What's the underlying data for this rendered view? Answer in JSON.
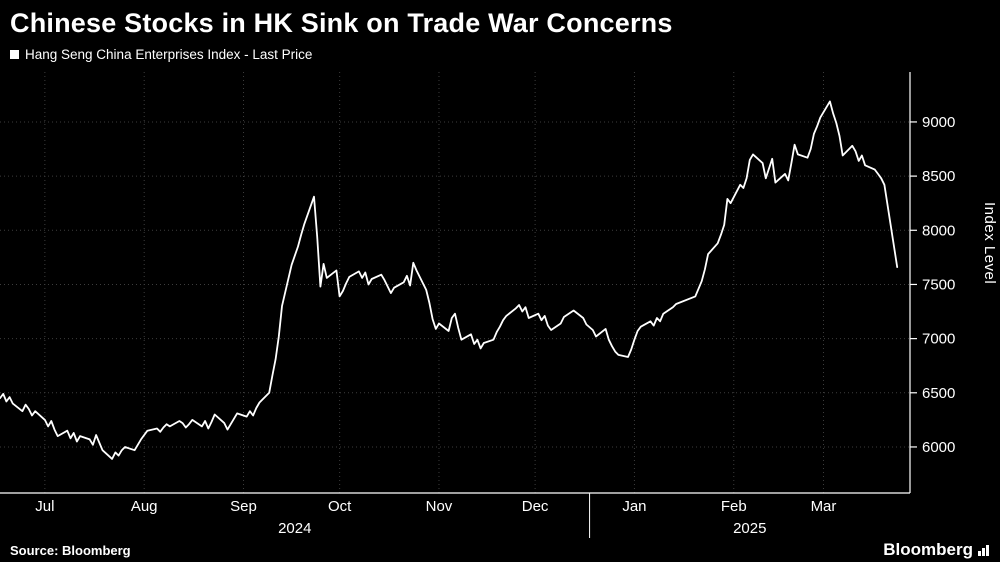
{
  "title": "Chinese Stocks in HK Sink on Trade War Concerns",
  "legend": {
    "label": "Hang Seng China Enterprises Index - Last Price",
    "swatch_color": "#ffffff"
  },
  "y_axis_label": "Index Level",
  "footer": {
    "source": "Source: Bloomberg",
    "brand": "Bloomberg"
  },
  "colors": {
    "background": "#000000",
    "line": "#ffffff",
    "grid": "#3d3d3d",
    "axis": "#ffffff",
    "text": "#ffffff"
  },
  "chart_data": {
    "type": "line",
    "title": "Chinese Stocks in HK Sink on Trade War Concerns",
    "series_name": "Hang Seng China Enterprises Index - Last Price",
    "xlabel": "",
    "ylabel": "Index Level",
    "x_domain": [
      "2024-07-01",
      "2025-04-11"
    ],
    "ylim": [
      5575,
      9461
    ],
    "yticks": [
      6000,
      6500,
      7000,
      7500,
      8000,
      8500,
      9000
    ],
    "grid": "dotted",
    "legend_position": "top-left",
    "month_ticks": [
      {
        "date": "2024-07-15",
        "label": "Jul"
      },
      {
        "date": "2024-08-15",
        "label": "Aug"
      },
      {
        "date": "2024-09-15",
        "label": "Sep"
      },
      {
        "date": "2024-10-15",
        "label": "Oct"
      },
      {
        "date": "2024-11-15",
        "label": "Nov"
      },
      {
        "date": "2024-12-15",
        "label": "Dec"
      },
      {
        "date": "2025-01-15",
        "label": "Jan"
      },
      {
        "date": "2025-02-15",
        "label": "Feb"
      },
      {
        "date": "2025-03-15",
        "label": "Mar"
      }
    ],
    "year_labels": [
      {
        "label": "2024",
        "start": "2024-07-01",
        "end": "2025-01-01"
      },
      {
        "label": "2025",
        "start": "2025-01-01",
        "end": "2025-04-11"
      }
    ],
    "year_separators": [
      "2025-01-01"
    ],
    "points": [
      [
        "2024-07-01",
        6450
      ],
      [
        "2024-07-02",
        6490
      ],
      [
        "2024-07-03",
        6420
      ],
      [
        "2024-07-04",
        6460
      ],
      [
        "2024-07-05",
        6400
      ],
      [
        "2024-07-08",
        6330
      ],
      [
        "2024-07-09",
        6390
      ],
      [
        "2024-07-10",
        6350
      ],
      [
        "2024-07-11",
        6290
      ],
      [
        "2024-07-12",
        6330
      ],
      [
        "2024-07-15",
        6250
      ],
      [
        "2024-07-16",
        6190
      ],
      [
        "2024-07-17",
        6240
      ],
      [
        "2024-07-18",
        6160
      ],
      [
        "2024-07-19",
        6100
      ],
      [
        "2024-07-22",
        6150
      ],
      [
        "2024-07-23",
        6080
      ],
      [
        "2024-07-24",
        6130
      ],
      [
        "2024-07-25",
        6050
      ],
      [
        "2024-07-26",
        6100
      ],
      [
        "2024-07-29",
        6070
      ],
      [
        "2024-07-30",
        6020
      ],
      [
        "2024-07-31",
        6110
      ],
      [
        "2024-08-01",
        6040
      ],
      [
        "2024-08-02",
        5970
      ],
      [
        "2024-08-05",
        5890
      ],
      [
        "2024-08-06",
        5950
      ],
      [
        "2024-08-07",
        5920
      ],
      [
        "2024-08-08",
        5970
      ],
      [
        "2024-08-09",
        6000
      ],
      [
        "2024-08-12",
        5970
      ],
      [
        "2024-08-13",
        6020
      ],
      [
        "2024-08-14",
        6070
      ],
      [
        "2024-08-15",
        6110
      ],
      [
        "2024-08-16",
        6150
      ],
      [
        "2024-08-19",
        6170
      ],
      [
        "2024-08-20",
        6140
      ],
      [
        "2024-08-21",
        6180
      ],
      [
        "2024-08-22",
        6210
      ],
      [
        "2024-08-23",
        6190
      ],
      [
        "2024-08-26",
        6240
      ],
      [
        "2024-08-27",
        6220
      ],
      [
        "2024-08-28",
        6180
      ],
      [
        "2024-08-29",
        6210
      ],
      [
        "2024-08-30",
        6250
      ],
      [
        "2024-09-02",
        6190
      ],
      [
        "2024-09-03",
        6240
      ],
      [
        "2024-09-04",
        6170
      ],
      [
        "2024-09-05",
        6230
      ],
      [
        "2024-09-06",
        6300
      ],
      [
        "2024-09-09",
        6220
      ],
      [
        "2024-09-10",
        6160
      ],
      [
        "2024-09-11",
        6210
      ],
      [
        "2024-09-12",
        6260
      ],
      [
        "2024-09-13",
        6310
      ],
      [
        "2024-09-16",
        6280
      ],
      [
        "2024-09-17",
        6330
      ],
      [
        "2024-09-18",
        6290
      ],
      [
        "2024-09-19",
        6360
      ],
      [
        "2024-09-20",
        6410
      ],
      [
        "2024-09-23",
        6500
      ],
      [
        "2024-09-24",
        6660
      ],
      [
        "2024-09-25",
        6810
      ],
      [
        "2024-09-26",
        7020
      ],
      [
        "2024-09-27",
        7300
      ],
      [
        "2024-09-30",
        7680
      ],
      [
        "2024-10-02",
        7850
      ],
      [
        "2024-10-03",
        7960
      ],
      [
        "2024-10-04",
        8060
      ],
      [
        "2024-10-07",
        8310
      ],
      [
        "2024-10-08",
        7940
      ],
      [
        "2024-10-09",
        7480
      ],
      [
        "2024-10-10",
        7690
      ],
      [
        "2024-10-11",
        7560
      ],
      [
        "2024-10-14",
        7630
      ],
      [
        "2024-10-15",
        7390
      ],
      [
        "2024-10-16",
        7440
      ],
      [
        "2024-10-17",
        7510
      ],
      [
        "2024-10-18",
        7570
      ],
      [
        "2024-10-21",
        7620
      ],
      [
        "2024-10-22",
        7560
      ],
      [
        "2024-10-23",
        7610
      ],
      [
        "2024-10-24",
        7500
      ],
      [
        "2024-10-25",
        7550
      ],
      [
        "2024-10-28",
        7590
      ],
      [
        "2024-10-29",
        7540
      ],
      [
        "2024-10-30",
        7480
      ],
      [
        "2024-10-31",
        7420
      ],
      [
        "2024-11-01",
        7470
      ],
      [
        "2024-11-04",
        7520
      ],
      [
        "2024-11-05",
        7580
      ],
      [
        "2024-11-06",
        7490
      ],
      [
        "2024-11-07",
        7700
      ],
      [
        "2024-11-08",
        7630
      ],
      [
        "2024-11-11",
        7450
      ],
      [
        "2024-11-12",
        7330
      ],
      [
        "2024-11-13",
        7180
      ],
      [
        "2024-11-14",
        7090
      ],
      [
        "2024-11-15",
        7140
      ],
      [
        "2024-11-18",
        7070
      ],
      [
        "2024-11-19",
        7190
      ],
      [
        "2024-11-20",
        7230
      ],
      [
        "2024-11-21",
        7100
      ],
      [
        "2024-11-22",
        6990
      ],
      [
        "2024-11-25",
        7040
      ],
      [
        "2024-11-26",
        6950
      ],
      [
        "2024-11-27",
        6990
      ],
      [
        "2024-11-28",
        6910
      ],
      [
        "2024-11-29",
        6960
      ],
      [
        "2024-12-02",
        6990
      ],
      [
        "2024-12-03",
        7060
      ],
      [
        "2024-12-04",
        7110
      ],
      [
        "2024-12-05",
        7170
      ],
      [
        "2024-12-06",
        7210
      ],
      [
        "2024-12-09",
        7280
      ],
      [
        "2024-12-10",
        7310
      ],
      [
        "2024-12-11",
        7250
      ],
      [
        "2024-12-12",
        7290
      ],
      [
        "2024-12-13",
        7190
      ],
      [
        "2024-12-16",
        7230
      ],
      [
        "2024-12-17",
        7170
      ],
      [
        "2024-12-18",
        7210
      ],
      [
        "2024-12-19",
        7120
      ],
      [
        "2024-12-20",
        7080
      ],
      [
        "2024-12-23",
        7140
      ],
      [
        "2024-12-24",
        7200
      ],
      [
        "2024-12-27",
        7260
      ],
      [
        "2024-12-30",
        7190
      ],
      [
        "2024-12-31",
        7130
      ],
      [
        "2025-01-02",
        7080
      ],
      [
        "2025-01-03",
        7020
      ],
      [
        "2025-01-06",
        7090
      ],
      [
        "2025-01-07",
        6990
      ],
      [
        "2025-01-08",
        6930
      ],
      [
        "2025-01-09",
        6880
      ],
      [
        "2025-01-10",
        6850
      ],
      [
        "2025-01-13",
        6830
      ],
      [
        "2025-01-14",
        6900
      ],
      [
        "2025-01-15",
        6990
      ],
      [
        "2025-01-16",
        7070
      ],
      [
        "2025-01-17",
        7110
      ],
      [
        "2025-01-20",
        7160
      ],
      [
        "2025-01-21",
        7120
      ],
      [
        "2025-01-22",
        7190
      ],
      [
        "2025-01-23",
        7160
      ],
      [
        "2025-01-24",
        7230
      ],
      [
        "2025-01-27",
        7290
      ],
      [
        "2025-01-28",
        7320
      ],
      [
        "2025-02-03",
        7390
      ],
      [
        "2025-02-04",
        7460
      ],
      [
        "2025-02-05",
        7530
      ],
      [
        "2025-02-06",
        7640
      ],
      [
        "2025-02-07",
        7780
      ],
      [
        "2025-02-10",
        7880
      ],
      [
        "2025-02-11",
        7960
      ],
      [
        "2025-02-12",
        8050
      ],
      [
        "2025-02-13",
        8290
      ],
      [
        "2025-02-14",
        8250
      ],
      [
        "2025-02-17",
        8420
      ],
      [
        "2025-02-18",
        8390
      ],
      [
        "2025-02-19",
        8480
      ],
      [
        "2025-02-20",
        8650
      ],
      [
        "2025-02-21",
        8700
      ],
      [
        "2025-02-24",
        8620
      ],
      [
        "2025-02-25",
        8480
      ],
      [
        "2025-02-26",
        8570
      ],
      [
        "2025-02-27",
        8660
      ],
      [
        "2025-02-28",
        8440
      ],
      [
        "2025-03-03",
        8520
      ],
      [
        "2025-03-04",
        8460
      ],
      [
        "2025-03-05",
        8620
      ],
      [
        "2025-03-06",
        8790
      ],
      [
        "2025-03-07",
        8700
      ],
      [
        "2025-03-10",
        8670
      ],
      [
        "2025-03-11",
        8750
      ],
      [
        "2025-03-12",
        8890
      ],
      [
        "2025-03-13",
        8960
      ],
      [
        "2025-03-14",
        9040
      ],
      [
        "2025-03-17",
        9190
      ],
      [
        "2025-03-18",
        9080
      ],
      [
        "2025-03-19",
        8990
      ],
      [
        "2025-03-20",
        8870
      ],
      [
        "2025-03-21",
        8690
      ],
      [
        "2025-03-24",
        8780
      ],
      [
        "2025-03-25",
        8730
      ],
      [
        "2025-03-26",
        8640
      ],
      [
        "2025-03-27",
        8690
      ],
      [
        "2025-03-28",
        8600
      ],
      [
        "2025-03-31",
        8560
      ],
      [
        "2025-04-01",
        8520
      ],
      [
        "2025-04-02",
        8480
      ],
      [
        "2025-04-03",
        8420
      ],
      [
        "2025-04-07",
        7660
      ]
    ]
  }
}
